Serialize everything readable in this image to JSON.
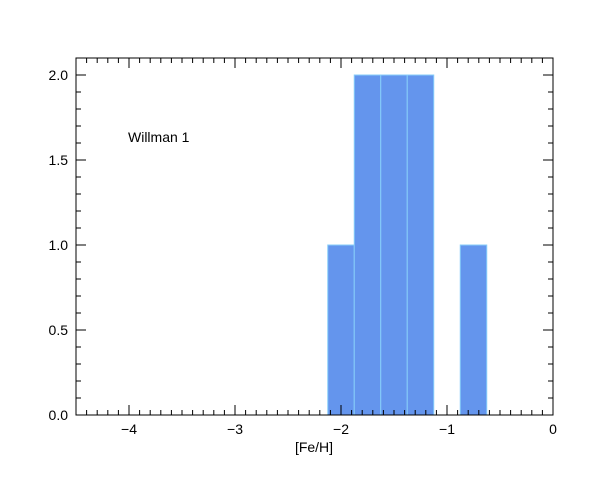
{
  "chart_data": {
    "type": "bar",
    "title": "",
    "xlabel": "[Fe/H]",
    "ylabel": "",
    "annotation": "Willman 1",
    "xlim": [
      -4.5,
      0
    ],
    "ylim": [
      0,
      2.1
    ],
    "bin_width": 0.25,
    "bars": [
      {
        "x0": -2.125,
        "x1": -1.875,
        "value": 1
      },
      {
        "x0": -1.875,
        "x1": -1.625,
        "value": 2
      },
      {
        "x0": -1.625,
        "x1": -1.375,
        "value": 2
      },
      {
        "x0": -1.375,
        "x1": -1.125,
        "value": 2
      },
      {
        "x0": -0.875,
        "x1": -0.625,
        "value": 1
      }
    ],
    "x_ticks": [
      -4,
      -3,
      -2,
      -1,
      0
    ],
    "x_tick_labels": [
      "−4",
      "−3",
      "−2",
      "−1",
      "0"
    ],
    "y_ticks": [
      0,
      0.5,
      1,
      1.5,
      2
    ],
    "y_tick_labels": [
      "0.0",
      "0.5",
      "1.0",
      "1.5",
      "2.0"
    ],
    "grid": false,
    "bar_color": "#6495ED",
    "bar_edge_color": "#87CEFA"
  }
}
